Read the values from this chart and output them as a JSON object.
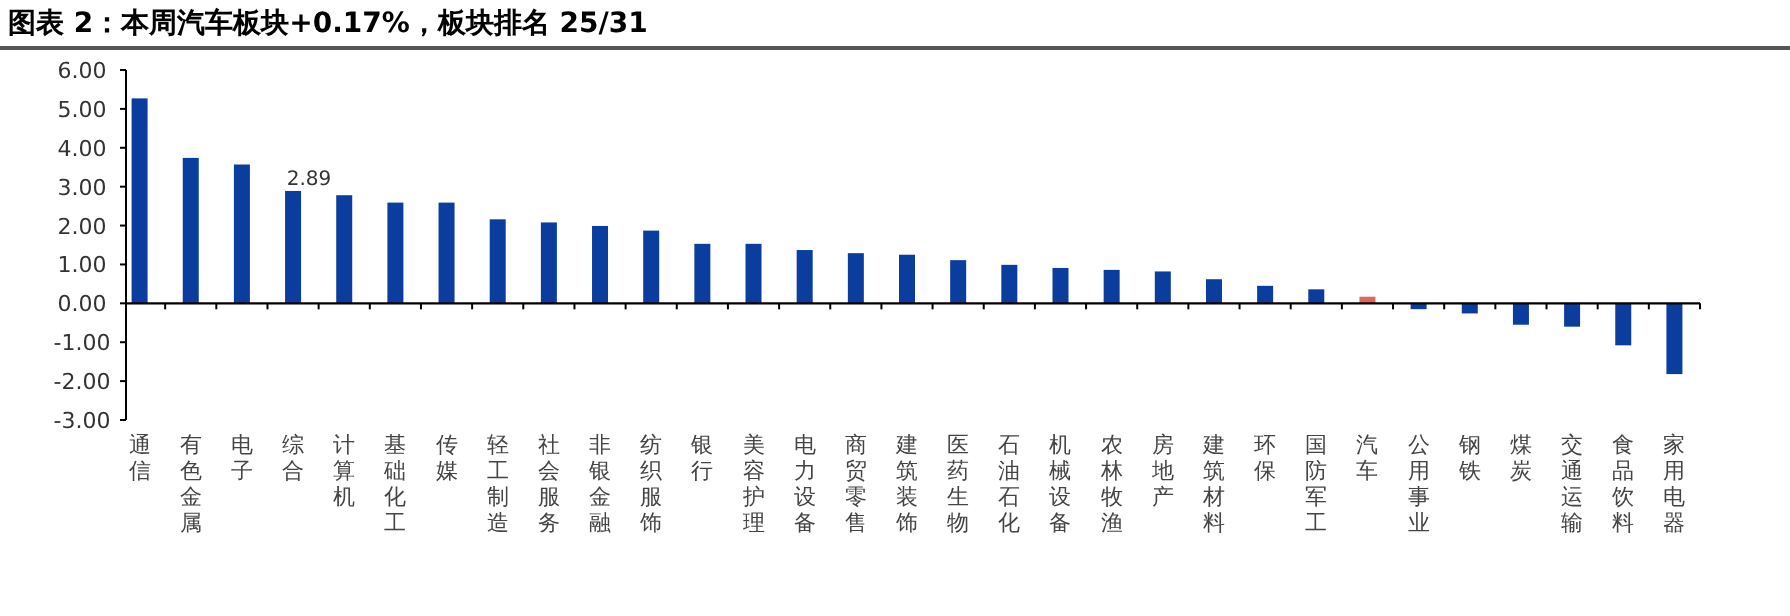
{
  "chart_data": {
    "type": "bar",
    "title": "图表 2：本周汽车板块+0.17%，板块排名 25/31",
    "categories": [
      "通信",
      "有色金属",
      "电子",
      "综合",
      "计算机",
      "基础化工",
      "传媒",
      "轻工制造",
      "社会服务",
      "非银金融",
      "纺织服饰",
      "银行",
      "美容护理",
      "电力设备",
      "商贸零售",
      "建筑装饰",
      "医药生物",
      "石油石化",
      "机械设备",
      "农林牧渔",
      "房地产",
      "建筑材料",
      "环保",
      "国防军工",
      "汽车",
      "公用事业",
      "钢铁",
      "煤炭",
      "交通运输",
      "食品饮料",
      "家用电器"
    ],
    "values": [
      5.27,
      3.74,
      3.57,
      2.89,
      2.78,
      2.59,
      2.59,
      2.16,
      2.08,
      1.99,
      1.87,
      1.53,
      1.53,
      1.37,
      1.29,
      1.25,
      1.11,
      0.99,
      0.91,
      0.86,
      0.82,
      0.62,
      0.45,
      0.36,
      0.17,
      -0.15,
      -0.26,
      -0.55,
      -0.6,
      -1.08,
      -1.82
    ],
    "colors": [
      "#0a3d9e",
      "#0a3d9e",
      "#0a3d9e",
      "#0a3d9e",
      "#0a3d9e",
      "#0a3d9e",
      "#0a3d9e",
      "#0a3d9e",
      "#0a3d9e",
      "#0a3d9e",
      "#0a3d9e",
      "#0a3d9e",
      "#0a3d9e",
      "#0a3d9e",
      "#0a3d9e",
      "#0a3d9e",
      "#0a3d9e",
      "#0a3d9e",
      "#0a3d9e",
      "#0a3d9e",
      "#0a3d9e",
      "#0a3d9e",
      "#0a3d9e",
      "#0a3d9e",
      "#e06666",
      "#0a3d9e",
      "#0a3d9e",
      "#0a3d9e",
      "#0a3d9e",
      "#0a3d9e",
      "#0a3d9e"
    ],
    "value_labels": [
      null,
      null,
      null,
      "2.89",
      null,
      null,
      null,
      null,
      null,
      null,
      null,
      null,
      null,
      null,
      null,
      null,
      null,
      null,
      null,
      null,
      null,
      null,
      null,
      null,
      null,
      null,
      null,
      null,
      null,
      null,
      null
    ],
    "ylim": [
      -3,
      6
    ],
    "yticks": [
      {
        "value": 6,
        "label": "6.00"
      },
      {
        "value": 5,
        "label": "5.00"
      },
      {
        "value": 4,
        "label": "4.00"
      },
      {
        "value": 3,
        "label": "3.00"
      },
      {
        "value": 2,
        "label": "2.00"
      },
      {
        "value": 1,
        "label": "1.00"
      },
      {
        "value": 0,
        "label": "0.00"
      },
      {
        "value": -1,
        "label": "-1.00"
      },
      {
        "value": -2,
        "label": "-2.00"
      },
      {
        "value": -3,
        "label": "-3.00"
      }
    ]
  }
}
